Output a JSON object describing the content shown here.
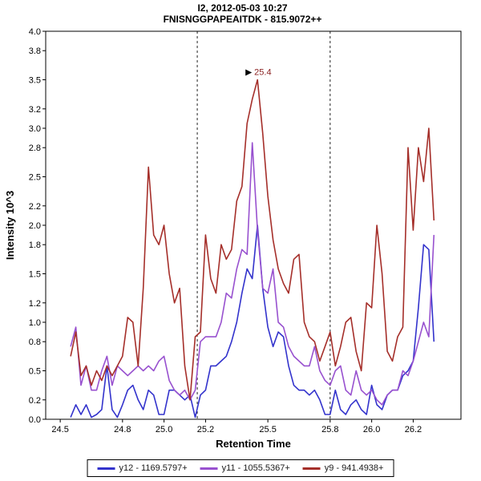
{
  "page": {
    "background": "#ffffff"
  },
  "chart_data": {
    "type": "line",
    "title": "I2, 2012-05-03 10:27",
    "subtitle": "FNISNGGPAPEAITDK - 815.9072++",
    "xlabel": "Retention Time",
    "ylabel": "Intensity 10^3",
    "xlim": [
      24.43,
      26.43
    ],
    "ylim": [
      0,
      4
    ],
    "x_ticks": [
      24.5,
      24.8,
      25.0,
      25.2,
      25.5,
      25.8,
      26.0,
      26.2
    ],
    "y_ticks": [
      0.0,
      0.2,
      0.5,
      0.8,
      1.0,
      1.2,
      1.5,
      1.8,
      2.0,
      2.2,
      2.5,
      2.8,
      3.0,
      3.2,
      3.5,
      3.8,
      4.0
    ],
    "grid": false,
    "legend_position": "bottom",
    "integration_boundaries": [
      25.16,
      25.8
    ],
    "peak_annotation": {
      "text": "25.4",
      "x": 25.45,
      "y": 3.5,
      "color": "#8b2222"
    },
    "x": [
      24.55,
      24.575,
      24.6,
      24.625,
      24.65,
      24.675,
      24.7,
      24.725,
      24.75,
      24.775,
      24.8,
      24.825,
      24.85,
      24.875,
      24.9,
      24.925,
      24.95,
      24.975,
      25.0,
      25.025,
      25.05,
      25.075,
      25.1,
      25.125,
      25.15,
      25.175,
      25.2,
      25.225,
      25.25,
      25.275,
      25.3,
      25.325,
      25.35,
      25.375,
      25.4,
      25.425,
      25.45,
      25.475,
      25.5,
      25.525,
      25.55,
      25.575,
      25.6,
      25.625,
      25.65,
      25.675,
      25.7,
      25.725,
      25.75,
      25.775,
      25.8,
      25.825,
      25.85,
      25.875,
      25.9,
      25.925,
      25.95,
      25.975,
      26.0,
      26.025,
      26.05,
      26.075,
      26.1,
      26.125,
      26.15,
      26.175,
      26.2,
      26.225,
      26.25,
      26.275,
      26.3
    ],
    "series": [
      {
        "name": "y12 - 1169.5797+",
        "color": "#3333cc",
        "values": [
          0.02,
          0.15,
          0.05,
          0.15,
          0.02,
          0.05,
          0.1,
          0.55,
          0.1,
          0.02,
          0.15,
          0.3,
          0.35,
          0.2,
          0.1,
          0.3,
          0.25,
          0.05,
          0.05,
          0.3,
          0.3,
          0.25,
          0.2,
          0.25,
          0.02,
          0.25,
          0.3,
          0.55,
          0.55,
          0.6,
          0.65,
          0.8,
          1.0,
          1.3,
          1.55,
          1.45,
          2.0,
          1.35,
          0.95,
          0.75,
          0.9,
          0.85,
          0.55,
          0.35,
          0.3,
          0.3,
          0.25,
          0.3,
          0.2,
          0.05,
          0.05,
          0.3,
          0.1,
          0.05,
          0.15,
          0.2,
          0.1,
          0.05,
          0.35,
          0.15,
          0.1,
          0.25,
          0.3,
          0.3,
          0.45,
          0.5,
          0.6,
          1.15,
          1.8,
          1.75,
          0.8
        ]
      },
      {
        "name": "y11 - 1055.5367+",
        "color": "#9851cf",
        "values": [
          0.75,
          0.95,
          0.35,
          0.55,
          0.3,
          0.3,
          0.5,
          0.65,
          0.35,
          0.55,
          0.5,
          0.45,
          0.5,
          0.55,
          0.5,
          0.55,
          0.5,
          0.6,
          0.65,
          0.4,
          0.3,
          0.25,
          0.3,
          0.2,
          0.3,
          0.8,
          0.85,
          0.85,
          0.85,
          1.0,
          1.3,
          1.25,
          1.55,
          1.75,
          1.7,
          2.85,
          1.95,
          1.35,
          1.3,
          1.55,
          1.0,
          0.95,
          0.75,
          0.65,
          0.6,
          0.55,
          0.55,
          0.75,
          0.5,
          0.4,
          0.35,
          0.5,
          0.55,
          0.3,
          0.25,
          0.5,
          0.3,
          0.25,
          0.3,
          0.2,
          0.15,
          0.25,
          0.3,
          0.3,
          0.5,
          0.45,
          0.6,
          0.8,
          1.0,
          0.85,
          1.9
        ]
      },
      {
        "name": "y9 - 941.4938+",
        "color": "#a52f2a",
        "values": [
          0.65,
          0.9,
          0.45,
          0.55,
          0.35,
          0.5,
          0.4,
          0.55,
          0.45,
          0.55,
          0.65,
          1.05,
          1.0,
          0.55,
          1.35,
          2.6,
          1.9,
          1.8,
          2.0,
          1.5,
          1.2,
          1.35,
          0.55,
          0.2,
          0.85,
          0.9,
          1.9,
          1.45,
          1.3,
          1.8,
          1.65,
          1.75,
          2.25,
          2.4,
          3.05,
          3.3,
          3.5,
          2.95,
          2.3,
          1.85,
          1.55,
          1.4,
          1.3,
          1.65,
          1.7,
          1.0,
          0.85,
          0.8,
          0.6,
          0.75,
          0.9,
          0.55,
          0.75,
          1.0,
          1.05,
          0.7,
          0.5,
          1.2,
          1.15,
          2.0,
          1.5,
          0.7,
          0.6,
          0.85,
          0.95,
          2.8,
          1.95,
          2.8,
          2.45,
          3.0,
          2.05
        ]
      }
    ]
  }
}
